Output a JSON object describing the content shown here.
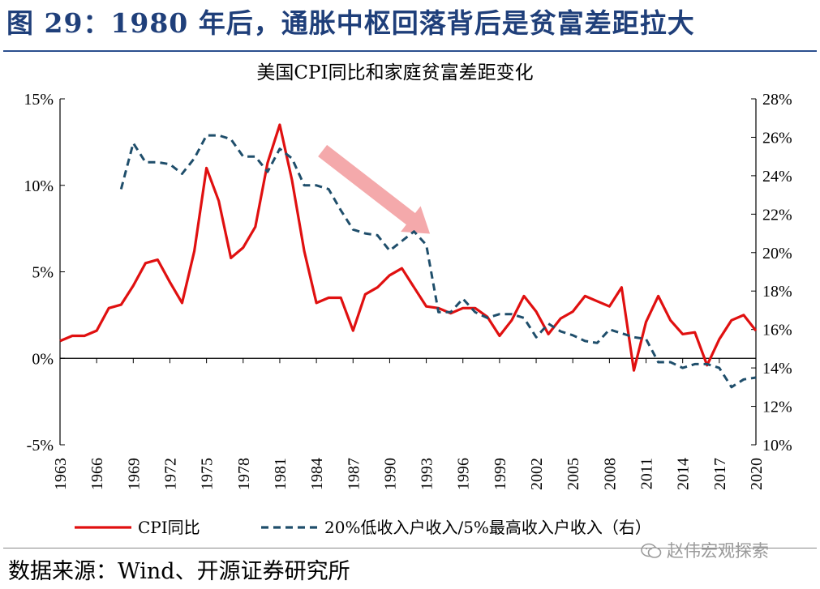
{
  "header": {
    "figure_title": "图 29：1980 年后，通胀中枢回落背后是贫富差距拉大"
  },
  "footer": {
    "source_text": "数据来源：Wind、开源证券研究所",
    "watermark_text": "赵伟宏观探索"
  },
  "colors": {
    "cpi_line": "#e01010",
    "ratio_line": "#1f4e6b",
    "arrow": "#f4a9ab",
    "header_text": "#1f3f7a"
  },
  "icons": {
    "watermark": "wechat-icon"
  },
  "chart_data": {
    "type": "line",
    "title": "美国CPI同比和家庭贫富差距变化",
    "x_tick_labels": [
      "1963",
      "1966",
      "1969",
      "1972",
      "1975",
      "1978",
      "1981",
      "1984",
      "1987",
      "1990",
      "1993",
      "1996",
      "1999",
      "2002",
      "2005",
      "2008",
      "2011",
      "2014",
      "2017",
      "2020"
    ],
    "xlim": [
      1963,
      2020
    ],
    "y_left": {
      "ylim": [
        -5,
        15
      ],
      "ticks": [
        -5,
        0,
        5,
        10,
        15
      ],
      "tick_labels": [
        "-5%",
        "0%",
        "5%",
        "10%",
        "15%"
      ]
    },
    "y_right": {
      "ylim": [
        10,
        28
      ],
      "ticks": [
        10,
        12,
        14,
        16,
        18,
        20,
        22,
        24,
        26,
        28
      ],
      "tick_labels": [
        "10%",
        "12%",
        "14%",
        "16%",
        "18%",
        "20%",
        "22%",
        "24%",
        "26%",
        "28%"
      ]
    },
    "series": [
      {
        "name": "CPI同比",
        "axis": "left",
        "style": "solid",
        "x": [
          1963,
          1964,
          1965,
          1966,
          1967,
          1968,
          1969,
          1970,
          1971,
          1972,
          1973,
          1974,
          1975,
          1976,
          1977,
          1978,
          1979,
          1980,
          1981,
          1982,
          1983,
          1984,
          1985,
          1986,
          1987,
          1988,
          1989,
          1990,
          1991,
          1992,
          1993,
          1994,
          1995,
          1996,
          1997,
          1998,
          1999,
          2000,
          2001,
          2002,
          2003,
          2004,
          2005,
          2006,
          2007,
          2008,
          2009,
          2010,
          2011,
          2012,
          2013,
          2014,
          2015,
          2016,
          2017,
          2018,
          2019,
          2020
        ],
        "values": [
          1.0,
          1.3,
          1.3,
          1.6,
          2.9,
          3.1,
          4.2,
          5.5,
          5.7,
          4.4,
          3.2,
          6.2,
          11.0,
          9.1,
          5.8,
          6.4,
          7.6,
          11.3,
          13.5,
          10.3,
          6.2,
          3.2,
          3.5,
          3.5,
          1.6,
          3.7,
          4.1,
          4.8,
          5.2,
          4.1,
          3.0,
          2.9,
          2.6,
          2.9,
          2.9,
          2.4,
          1.3,
          2.2,
          3.6,
          2.7,
          1.4,
          2.3,
          2.7,
          3.6,
          3.3,
          3.0,
          4.1,
          -0.7,
          2.1,
          3.6,
          2.2,
          1.4,
          1.5,
          -0.4,
          1.1,
          2.2,
          2.5,
          1.6
        ]
      },
      {
        "name": "20%低收入户收入/5%最高收入户收入（右）",
        "axis": "right",
        "style": "dashed",
        "x": [
          1968,
          1969,
          1970,
          1971,
          1972,
          1973,
          1974,
          1975,
          1976,
          1977,
          1978,
          1979,
          1980,
          1981,
          1982,
          1983,
          1984,
          1985,
          1986,
          1987,
          1988,
          1989,
          1990,
          1991,
          1992,
          1993,
          1994,
          1995,
          1996,
          1997,
          1998,
          1999,
          2000,
          2001,
          2002,
          2003,
          2004,
          2005,
          2006,
          2007,
          2008,
          2009,
          2010,
          2011,
          2012,
          2013,
          2014,
          2015,
          2016,
          2017,
          2018,
          2019,
          2020
        ],
        "values": [
          23.3,
          25.7,
          24.7,
          24.7,
          24.6,
          24.1,
          24.9,
          26.1,
          26.1,
          25.9,
          25.0,
          25.0,
          24.2,
          25.4,
          24.9,
          23.5,
          23.5,
          23.3,
          22.2,
          21.2,
          21.0,
          20.9,
          20.1,
          20.6,
          21.1,
          20.4,
          16.9,
          16.9,
          17.6,
          16.9,
          16.6,
          16.8,
          16.8,
          16.6,
          15.6,
          16.3,
          15.9,
          15.7,
          15.4,
          15.3,
          16.0,
          15.8,
          15.6,
          15.5,
          14.3,
          14.3,
          14.0,
          14.2,
          14.2,
          14.0,
          13.0,
          13.4,
          13.5
        ]
      }
    ],
    "annotations": [
      {
        "type": "arrow",
        "description": "downward trend arrow",
        "from": [
          1984.5,
          12.0
        ],
        "to": [
          1993.3,
          7.2
        ],
        "axis": "left"
      }
    ],
    "legend_position": "bottom",
    "grid": false
  }
}
